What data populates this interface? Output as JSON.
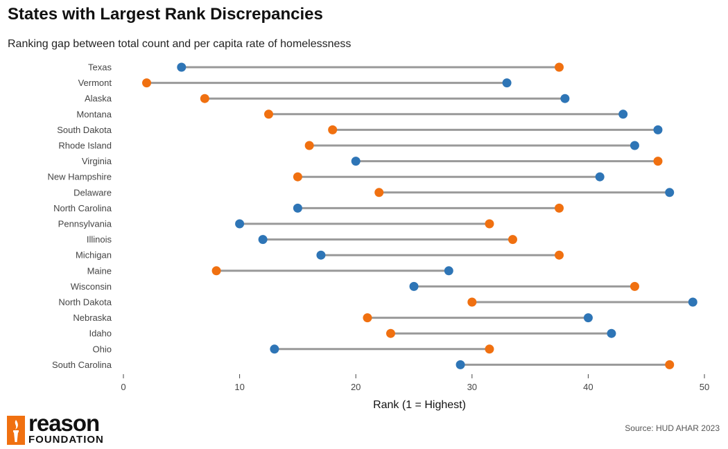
{
  "chart_data": {
    "type": "dumbbell",
    "title": "States with Largest Rank Discrepancies",
    "subtitle": "Ranking gap between total count and per capita rate of homelessness",
    "xlabel": "Rank (1 = Highest)",
    "ylabel": "",
    "xlim": [
      0,
      50
    ],
    "xticks": [
      0,
      10,
      20,
      30,
      40,
      50
    ],
    "grid": false,
    "legend": "none",
    "categories": [
      "Texas",
      "Vermont",
      "Alaska",
      "Montana",
      "South Dakota",
      "Rhode Island",
      "Virginia",
      "New Hampshire",
      "Delaware",
      "North Carolina",
      "Pennsylvania",
      "Illinois",
      "Michigan",
      "Maine",
      "Wisconsin",
      "North Dakota",
      "Nebraska",
      "Idaho",
      "Ohio",
      "South Carolina"
    ],
    "series": [
      {
        "color": "#2e75b6",
        "values": [
          5,
          33,
          38,
          43,
          46,
          44,
          20,
          41,
          47,
          15,
          10,
          12,
          17,
          28,
          25,
          49,
          40,
          42,
          13,
          29
        ]
      },
      {
        "color": "#f07010",
        "values": [
          37.5,
          2,
          7,
          12.5,
          18,
          16,
          46,
          15,
          22,
          37.5,
          31.5,
          33.5,
          37.5,
          8,
          44,
          30,
          21,
          23,
          31.5,
          47
        ]
      }
    ],
    "connector_color": "#999999"
  },
  "source": "Source: HUD AHAR 2023",
  "logo": {
    "word": "reason",
    "sub": "FOUNDATION",
    "brand_color": "#f07010"
  }
}
